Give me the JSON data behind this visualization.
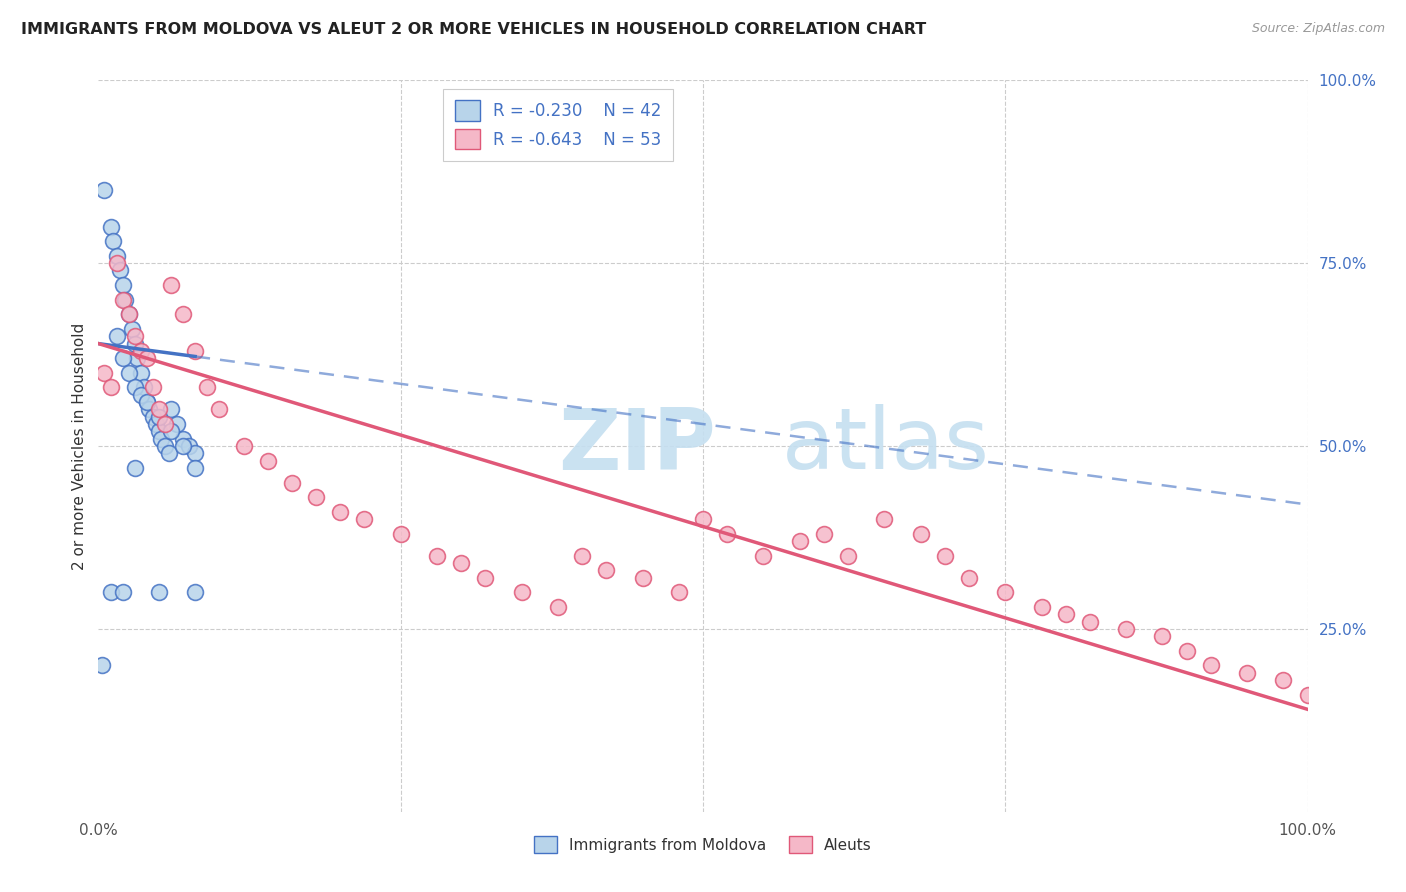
{
  "title": "IMMIGRANTS FROM MOLDOVA VS ALEUT 2 OR MORE VEHICLES IN HOUSEHOLD CORRELATION CHART",
  "source": "Source: ZipAtlas.com",
  "ylabel": "2 or more Vehicles in Household",
  "legend_label1": "Immigrants from Moldova",
  "legend_label2": "Aleuts",
  "r1": -0.23,
  "n1": 42,
  "r2": -0.643,
  "n2": 53,
  "blue_fill": "#b8d4ea",
  "blue_edge": "#4472c4",
  "pink_fill": "#f5b8c8",
  "pink_edge": "#e05878",
  "blue_line_color": "#4472c4",
  "pink_line_color": "#e05878",
  "blue_scatter_x": [
    0.5,
    1.0,
    1.2,
    1.5,
    1.8,
    2.0,
    2.2,
    2.5,
    2.8,
    3.0,
    3.2,
    3.5,
    3.8,
    4.0,
    4.2,
    4.5,
    4.8,
    5.0,
    5.2,
    5.5,
    5.8,
    6.0,
    6.5,
    7.0,
    7.5,
    8.0,
    1.5,
    2.0,
    2.5,
    3.0,
    3.5,
    4.0,
    5.0,
    6.0,
    7.0,
    8.0,
    1.0,
    2.0,
    5.0,
    8.0,
    0.3,
    3.0
  ],
  "blue_scatter_y": [
    85,
    80,
    78,
    76,
    74,
    72,
    70,
    68,
    66,
    64,
    62,
    60,
    58,
    56,
    55,
    54,
    53,
    52,
    51,
    50,
    49,
    55,
    53,
    51,
    50,
    49,
    65,
    62,
    60,
    58,
    57,
    56,
    54,
    52,
    50,
    47,
    30,
    30,
    30,
    30,
    20,
    47
  ],
  "pink_scatter_x": [
    0.5,
    1.0,
    1.5,
    2.0,
    2.5,
    3.0,
    3.5,
    4.0,
    4.5,
    5.0,
    5.5,
    6.0,
    7.0,
    8.0,
    9.0,
    10.0,
    12.0,
    14.0,
    16.0,
    18.0,
    20.0,
    22.0,
    25.0,
    28.0,
    30.0,
    32.0,
    35.0,
    38.0,
    40.0,
    42.0,
    45.0,
    48.0,
    50.0,
    52.0,
    55.0,
    58.0,
    60.0,
    62.0,
    65.0,
    68.0,
    70.0,
    72.0,
    75.0,
    78.0,
    80.0,
    82.0,
    85.0,
    88.0,
    90.0,
    92.0,
    95.0,
    98.0,
    100.0
  ],
  "pink_scatter_y": [
    60,
    58,
    75,
    70,
    68,
    65,
    63,
    62,
    58,
    55,
    53,
    72,
    68,
    63,
    58,
    55,
    50,
    48,
    45,
    43,
    41,
    40,
    38,
    35,
    34,
    32,
    30,
    28,
    35,
    33,
    32,
    30,
    40,
    38,
    35,
    37,
    38,
    35,
    40,
    38,
    35,
    32,
    30,
    28,
    27,
    26,
    25,
    24,
    22,
    20,
    19,
    18,
    16
  ],
  "blue_line_x0": 0.0,
  "blue_line_y0": 64.0,
  "blue_line_x1": 100.0,
  "blue_line_y1": 42.0,
  "pink_line_x0": 0.0,
  "pink_line_y0": 64.0,
  "pink_line_x1": 100.0,
  "pink_line_y1": 14.0,
  "xmin": 0.0,
  "xmax": 100.0,
  "ymin": 0.0,
  "ymax": 100.0,
  "grid_color": "#cccccc",
  "watermark_zip_color": "#c5dff0",
  "watermark_atlas_color": "#c5dff0"
}
